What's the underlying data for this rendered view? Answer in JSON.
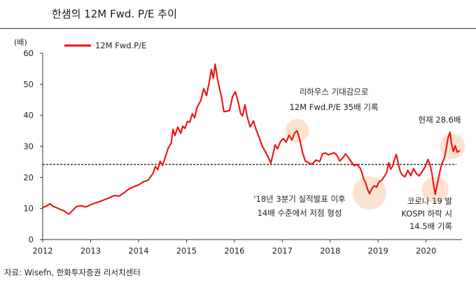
{
  "title": "한샘의 12M Fwd. P/E 추이",
  "source": "자료: Wisefn, 한화투자증권 리서치센터",
  "chart_data": {
    "type": "line",
    "unit_label": "(배)",
    "ylim": [
      0,
      60
    ],
    "y_ticks": [
      0,
      10,
      20,
      30,
      40,
      50,
      60
    ],
    "xlim": [
      2012,
      2020.75
    ],
    "x_ticks": [
      "2012",
      "2013",
      "2014",
      "2015",
      "2016",
      "2017",
      "2018",
      "2019",
      "2020"
    ],
    "legend": "12M Fwd.P/E",
    "series_color": "#ee1111",
    "reference_line": {
      "value": 24.2,
      "style": "dashed"
    },
    "points": [
      [
        2012.0,
        10.3
      ],
      [
        2012.08,
        10.8
      ],
      [
        2012.15,
        11.5
      ],
      [
        2012.22,
        10.7
      ],
      [
        2012.3,
        10.2
      ],
      [
        2012.38,
        9.6
      ],
      [
        2012.45,
        9.2
      ],
      [
        2012.5,
        8.6
      ],
      [
        2012.55,
        8.2
      ],
      [
        2012.62,
        9.3
      ],
      [
        2012.7,
        10.6
      ],
      [
        2012.8,
        10.9
      ],
      [
        2012.9,
        10.5
      ],
      [
        2013.0,
        11.2
      ],
      [
        2013.1,
        11.8
      ],
      [
        2013.2,
        12.3
      ],
      [
        2013.3,
        12.9
      ],
      [
        2013.4,
        13.5
      ],
      [
        2013.5,
        14.2
      ],
      [
        2013.6,
        14.0
      ],
      [
        2013.7,
        15.1
      ],
      [
        2013.8,
        16.3
      ],
      [
        2013.9,
        17.0
      ],
      [
        2014.0,
        17.6
      ],
      [
        2014.1,
        18.6
      ],
      [
        2014.2,
        19.1
      ],
      [
        2014.3,
        21.3
      ],
      [
        2014.35,
        23.5
      ],
      [
        2014.4,
        22.5
      ],
      [
        2014.45,
        25.2
      ],
      [
        2014.5,
        23.9
      ],
      [
        2014.55,
        26.1
      ],
      [
        2014.62,
        29.5
      ],
      [
        2014.68,
        31.0
      ],
      [
        2014.72,
        35.5
      ],
      [
        2014.76,
        33.5
      ],
      [
        2014.82,
        36.2
      ],
      [
        2014.88,
        34.2
      ],
      [
        2014.92,
        36.5
      ],
      [
        2014.97,
        35.8
      ],
      [
        2015.02,
        38.0
      ],
      [
        2015.07,
        37.8
      ],
      [
        2015.12,
        40.5
      ],
      [
        2015.17,
        39.2
      ],
      [
        2015.22,
        42.5
      ],
      [
        2015.3,
        44.8
      ],
      [
        2015.36,
        48.6
      ],
      [
        2015.42,
        46.4
      ],
      [
        2015.47,
        50.2
      ],
      [
        2015.52,
        54.8
      ],
      [
        2015.56,
        52.0
      ],
      [
        2015.6,
        56.5
      ],
      [
        2015.65,
        51.5
      ],
      [
        2015.69,
        48.7
      ],
      [
        2015.73,
        46.0
      ],
      [
        2015.78,
        41.2
      ],
      [
        2015.84,
        41.3
      ],
      [
        2015.9,
        41.6
      ],
      [
        2015.96,
        46.0
      ],
      [
        2016.02,
        47.6
      ],
      [
        2016.08,
        44.3
      ],
      [
        2016.13,
        40.6
      ],
      [
        2016.17,
        39.8
      ],
      [
        2016.22,
        43.4
      ],
      [
        2016.27,
        39.4
      ],
      [
        2016.33,
        36.3
      ],
      [
        2016.4,
        38.2
      ],
      [
        2016.45,
        35.6
      ],
      [
        2016.52,
        32.8
      ],
      [
        2016.58,
        30.2
      ],
      [
        2016.64,
        28.5
      ],
      [
        2016.7,
        26.8
      ],
      [
        2016.76,
        24.6
      ],
      [
        2016.8,
        27.1
      ],
      [
        2016.85,
        30.5
      ],
      [
        2016.9,
        29.2
      ],
      [
        2016.96,
        31.5
      ],
      [
        2017.02,
        32.5
      ],
      [
        2017.08,
        31.4
      ],
      [
        2017.14,
        33.6
      ],
      [
        2017.2,
        32.1
      ],
      [
        2017.26,
        34.4
      ],
      [
        2017.31,
        35.0
      ],
      [
        2017.36,
        32.5
      ],
      [
        2017.42,
        28.2
      ],
      [
        2017.48,
        25.3
      ],
      [
        2017.54,
        24.8
      ],
      [
        2017.62,
        24.2
      ],
      [
        2017.7,
        25.6
      ],
      [
        2017.78,
        25.1
      ],
      [
        2017.84,
        27.6
      ],
      [
        2017.9,
        27.9
      ],
      [
        2017.96,
        27.3
      ],
      [
        2018.02,
        27.6
      ],
      [
        2018.08,
        28.0
      ],
      [
        2018.14,
        27.2
      ],
      [
        2018.2,
        25.3
      ],
      [
        2018.26,
        26.2
      ],
      [
        2018.32,
        27.6
      ],
      [
        2018.38,
        26.4
      ],
      [
        2018.44,
        25.0
      ],
      [
        2018.5,
        23.8
      ],
      [
        2018.56,
        24.2
      ],
      [
        2018.62,
        23.1
      ],
      [
        2018.66,
        21.6
      ],
      [
        2018.7,
        19.4
      ],
      [
        2018.74,
        18.2
      ],
      [
        2018.78,
        16.2
      ],
      [
        2018.82,
        14.8
      ],
      [
        2018.87,
        16.4
      ],
      [
        2018.92,
        17.3
      ],
      [
        2018.97,
        16.9
      ],
      [
        2019.02,
        18.6
      ],
      [
        2019.08,
        19.2
      ],
      [
        2019.14,
        20.6
      ],
      [
        2019.18,
        21.7
      ],
      [
        2019.22,
        24.8
      ],
      [
        2019.26,
        22.7
      ],
      [
        2019.3,
        23.6
      ],
      [
        2019.34,
        25.7
      ],
      [
        2019.38,
        27.4
      ],
      [
        2019.42,
        24.5
      ],
      [
        2019.46,
        22.0
      ],
      [
        2019.5,
        20.8
      ],
      [
        2019.56,
        20.2
      ],
      [
        2019.62,
        22.3
      ],
      [
        2019.68,
        20.6
      ],
      [
        2019.74,
        22.8
      ],
      [
        2019.8,
        21.2
      ],
      [
        2019.86,
        20.5
      ],
      [
        2019.92,
        22.0
      ],
      [
        2019.98,
        23.4
      ],
      [
        2020.04,
        25.8
      ],
      [
        2020.08,
        24.3
      ],
      [
        2020.12,
        21.5
      ],
      [
        2020.16,
        17.3
      ],
      [
        2020.19,
        14.6
      ],
      [
        2020.23,
        17.5
      ],
      [
        2020.28,
        21.3
      ],
      [
        2020.33,
        24.5
      ],
      [
        2020.38,
        26.1
      ],
      [
        2020.42,
        29.2
      ],
      [
        2020.46,
        32.8
      ],
      [
        2020.5,
        34.6
      ],
      [
        2020.53,
        31.0
      ],
      [
        2020.57,
        28.4
      ],
      [
        2020.61,
        30.2
      ],
      [
        2020.65,
        28.1
      ],
      [
        2020.7,
        28.6
      ]
    ],
    "annotations": [
      {
        "id": "peak2017",
        "lines": [
          "리하우스  기대감으로",
          "12M  Fwd.P/E  35배  기록"
        ],
        "marker_at": [
          2017.31,
          35
        ]
      },
      {
        "id": "low2018",
        "lines": [
          "'18년  3분기  실적발표  이후",
          "14배  수준에서  저점  형성"
        ],
        "marker_at": [
          2018.82,
          15
        ]
      },
      {
        "id": "low2020",
        "lines": [
          "코로나  19  발",
          "KOSPI  하락  시",
          "14.5배  기록"
        ],
        "marker_at": [
          2020.19,
          16
        ]
      },
      {
        "id": "current",
        "lines": [
          "현재  28.6배"
        ],
        "marker_at": [
          2020.55,
          30
        ]
      }
    ]
  }
}
